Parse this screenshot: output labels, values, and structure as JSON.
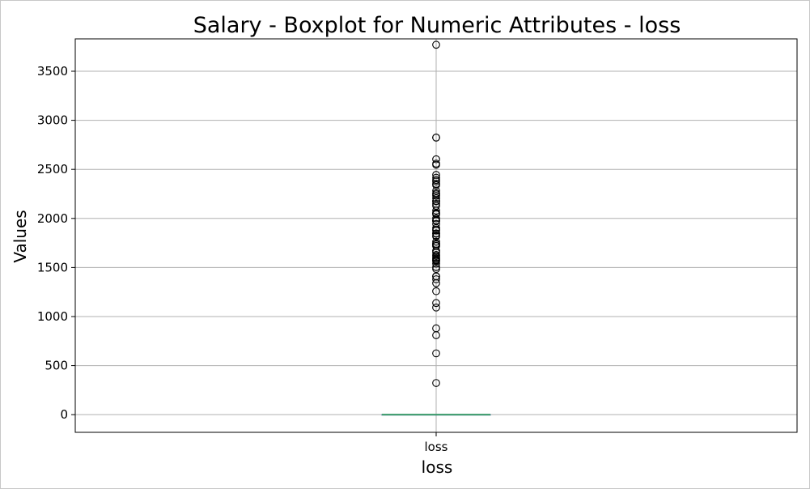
{
  "chart_data": {
    "type": "boxplot",
    "title": "Salary - Boxplot for Numeric Attributes - loss",
    "xlabel": "loss",
    "ylabel": "Values",
    "categories": [
      "loss"
    ],
    "ylim": [
      -180,
      3830
    ],
    "yticks": [
      0,
      500,
      1000,
      1500,
      2000,
      2500,
      3000,
      3500
    ],
    "grid": true,
    "series": [
      {
        "name": "loss",
        "box": {
          "whislo": 0,
          "q1": 0,
          "median": 0,
          "q3": 0,
          "whishi": 0
        },
        "outliers": [
          3770,
          2824,
          2824,
          2603,
          2559,
          2547,
          2444,
          2415,
          2392,
          2377,
          2352,
          2339,
          2282,
          2258,
          2246,
          2231,
          2206,
          2179,
          2174,
          2149,
          2129,
          2080,
          2057,
          2051,
          2042,
          2001,
          1980,
          1977,
          1974,
          1944,
          1902,
          1887,
          1876,
          1848,
          1844,
          1825,
          1816,
          1762,
          1741,
          1740,
          1735,
          1721,
          1719,
          1672,
          1668,
          1651,
          1628,
          1617,
          1602,
          1590,
          1579,
          1573,
          1564,
          1539,
          1504,
          1485,
          1411,
          1408,
          1380,
          1340,
          1258,
          1138,
          1092,
          880,
          810,
          625,
          323
        ]
      }
    ],
    "colors": {
      "median": "#3a9a6a",
      "grid": "#b0b0b0",
      "box": "#1f4f8f",
      "outlier": "#000000"
    }
  }
}
